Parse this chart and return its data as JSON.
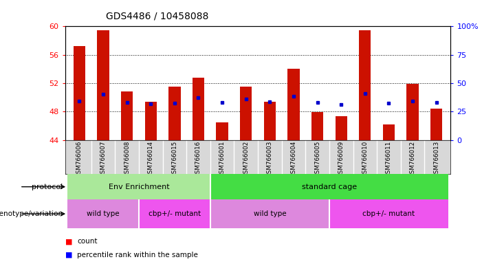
{
  "title": "GDS4486 / 10458088",
  "samples": [
    "GSM766006",
    "GSM766007",
    "GSM766008",
    "GSM766014",
    "GSM766015",
    "GSM766016",
    "GSM766001",
    "GSM766002",
    "GSM766003",
    "GSM766004",
    "GSM766005",
    "GSM766009",
    "GSM766010",
    "GSM766011",
    "GSM766012",
    "GSM766013"
  ],
  "bar_tops": [
    57.2,
    59.5,
    50.8,
    49.4,
    51.5,
    52.8,
    46.5,
    51.5,
    49.4,
    54.0,
    47.9,
    47.3,
    59.5,
    46.2,
    51.9,
    48.4
  ],
  "blue_y": [
    49.5,
    50.4,
    49.3,
    49.1,
    49.2,
    50.0,
    49.3,
    49.8,
    49.4,
    50.2,
    49.3,
    49.0,
    50.5,
    49.2,
    49.5,
    49.3
  ],
  "ymin": 44,
  "ymax": 60,
  "bar_color": "#cc1100",
  "dot_color": "#0000cc",
  "protocol_groups": [
    {
      "label": "Env Enrichment",
      "start": 0,
      "end": 5,
      "color": "#aae89a"
    },
    {
      "label": "standard cage",
      "start": 6,
      "end": 15,
      "color": "#44dd44"
    }
  ],
  "genotype_groups": [
    {
      "label": "wild type",
      "start": 0,
      "end": 2,
      "color": "#dd88dd"
    },
    {
      "label": "cbp+/- mutant",
      "start": 3,
      "end": 5,
      "color": "#ee55ee"
    },
    {
      "label": "wild type",
      "start": 6,
      "end": 10,
      "color": "#dd88dd"
    },
    {
      "label": "cbp+/- mutant",
      "start": 11,
      "end": 15,
      "color": "#ee55ee"
    }
  ],
  "left_yticks": [
    44,
    48,
    52,
    56,
    60
  ],
  "right_yticks": [
    0,
    25,
    50,
    75,
    100
  ],
  "right_ylabels": [
    "0",
    "25",
    "50",
    "75",
    "100%"
  ],
  "bar_width": 0.5,
  "xtick_bg": "#d8d8d8"
}
